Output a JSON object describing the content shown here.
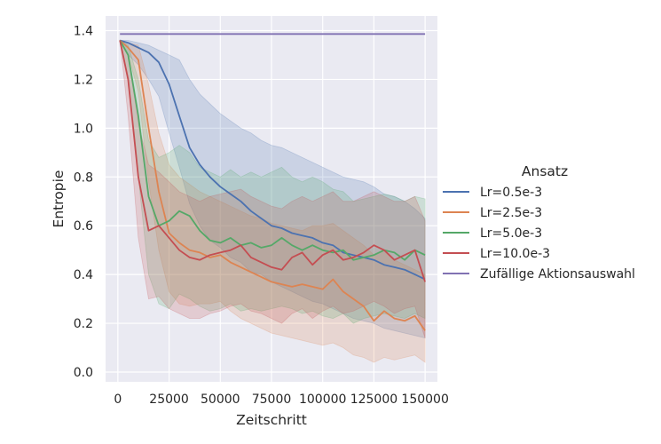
{
  "chart_data": {
    "type": "line",
    "title": "",
    "xlabel": "Zeitschritt",
    "ylabel": "Entropie",
    "xlim": [
      -6000,
      156000
    ],
    "ylim": [
      -0.04,
      1.46
    ],
    "xticks": [
      0,
      25000,
      50000,
      75000,
      100000,
      125000,
      150000
    ],
    "xtick_labels": [
      "0",
      "25000",
      "50000",
      "75000",
      "100000",
      "125000",
      "150000"
    ],
    "yticks": [
      0.0,
      0.2,
      0.4,
      0.6,
      0.8,
      1.0,
      1.2,
      1.4
    ],
    "ytick_labels": [
      "0.0",
      "0.2",
      "0.4",
      "0.6",
      "0.8",
      "1.0",
      "1.2",
      "1.4"
    ],
    "grid": true,
    "legend_title": "Ansatz",
    "legend_position": "outside-right",
    "series": [
      {
        "name": "Lr=0.5e-3",
        "color": "#4c72b0",
        "x": [
          1000,
          5000,
          10000,
          15000,
          20000,
          25000,
          30000,
          35000,
          40000,
          45000,
          50000,
          55000,
          60000,
          65000,
          70000,
          75000,
          80000,
          85000,
          90000,
          95000,
          100000,
          105000,
          110000,
          115000,
          120000,
          125000,
          130000,
          135000,
          140000,
          145000,
          150000
        ],
        "y": [
          1.36,
          1.35,
          1.33,
          1.31,
          1.27,
          1.18,
          1.05,
          0.92,
          0.85,
          0.8,
          0.76,
          0.73,
          0.7,
          0.66,
          0.63,
          0.6,
          0.59,
          0.57,
          0.56,
          0.55,
          0.53,
          0.52,
          0.49,
          0.48,
          0.47,
          0.46,
          0.44,
          0.43,
          0.42,
          0.4,
          0.38
        ],
        "upper": [
          1.36,
          1.36,
          1.35,
          1.34,
          1.32,
          1.3,
          1.28,
          1.2,
          1.14,
          1.1,
          1.06,
          1.03,
          1.0,
          0.98,
          0.95,
          0.93,
          0.92,
          0.9,
          0.88,
          0.86,
          0.84,
          0.82,
          0.8,
          0.79,
          0.78,
          0.76,
          0.73,
          0.72,
          0.7,
          0.67,
          0.63
        ],
        "lower": [
          1.36,
          1.3,
          1.26,
          1.2,
          1.13,
          0.98,
          0.84,
          0.69,
          0.6,
          0.54,
          0.51,
          0.47,
          0.45,
          0.41,
          0.4,
          0.37,
          0.35,
          0.33,
          0.31,
          0.29,
          0.28,
          0.26,
          0.24,
          0.22,
          0.21,
          0.2,
          0.18,
          0.17,
          0.16,
          0.15,
          0.14
        ]
      },
      {
        "name": "Lr=2.5e-3",
        "color": "#dd8452",
        "x": [
          1000,
          5000,
          10000,
          15000,
          20000,
          25000,
          30000,
          35000,
          40000,
          45000,
          50000,
          55000,
          60000,
          65000,
          70000,
          75000,
          80000,
          85000,
          90000,
          95000,
          100000,
          105000,
          110000,
          115000,
          120000,
          125000,
          130000,
          135000,
          140000,
          145000,
          150000
        ],
        "y": [
          1.36,
          1.33,
          1.28,
          1.0,
          0.74,
          0.57,
          0.53,
          0.5,
          0.49,
          0.47,
          0.48,
          0.45,
          0.43,
          0.41,
          0.39,
          0.37,
          0.36,
          0.35,
          0.36,
          0.35,
          0.34,
          0.38,
          0.33,
          0.3,
          0.27,
          0.21,
          0.25,
          0.22,
          0.21,
          0.23,
          0.17
        ],
        "upper": [
          1.36,
          1.35,
          1.34,
          1.18,
          0.98,
          0.85,
          0.8,
          0.77,
          0.74,
          0.72,
          0.7,
          0.68,
          0.66,
          0.64,
          0.63,
          0.61,
          0.6,
          0.59,
          0.58,
          0.6,
          0.6,
          0.61,
          0.58,
          0.55,
          0.52,
          0.48,
          0.5,
          0.46,
          0.44,
          0.42,
          0.4
        ],
        "lower": [
          1.36,
          1.3,
          1.15,
          0.78,
          0.5,
          0.33,
          0.28,
          0.27,
          0.28,
          0.28,
          0.29,
          0.25,
          0.22,
          0.2,
          0.18,
          0.16,
          0.15,
          0.14,
          0.13,
          0.12,
          0.11,
          0.12,
          0.1,
          0.07,
          0.06,
          0.04,
          0.06,
          0.05,
          0.06,
          0.07,
          0.04
        ]
      },
      {
        "name": "Lr=5.0e-3",
        "color": "#55a868",
        "x": [
          1000,
          5000,
          10000,
          15000,
          20000,
          25000,
          30000,
          35000,
          40000,
          45000,
          50000,
          55000,
          60000,
          65000,
          70000,
          75000,
          80000,
          85000,
          90000,
          95000,
          100000,
          105000,
          110000,
          115000,
          120000,
          125000,
          130000,
          135000,
          140000,
          145000,
          150000
        ],
        "y": [
          1.36,
          1.3,
          1.05,
          0.72,
          0.6,
          0.62,
          0.66,
          0.64,
          0.58,
          0.54,
          0.53,
          0.55,
          0.52,
          0.53,
          0.51,
          0.52,
          0.55,
          0.52,
          0.5,
          0.52,
          0.5,
          0.49,
          0.5,
          0.46,
          0.47,
          0.48,
          0.5,
          0.49,
          0.46,
          0.5,
          0.48
        ],
        "upper": [
          1.36,
          1.34,
          1.2,
          0.95,
          0.88,
          0.9,
          0.93,
          0.9,
          0.84,
          0.82,
          0.8,
          0.83,
          0.8,
          0.82,
          0.8,
          0.82,
          0.84,
          0.8,
          0.78,
          0.8,
          0.78,
          0.75,
          0.74,
          0.7,
          0.71,
          0.72,
          0.73,
          0.72,
          0.7,
          0.72,
          0.71
        ],
        "lower": [
          1.36,
          1.2,
          0.8,
          0.4,
          0.28,
          0.26,
          0.32,
          0.3,
          0.27,
          0.25,
          0.26,
          0.28,
          0.25,
          0.26,
          0.25,
          0.26,
          0.27,
          0.26,
          0.24,
          0.25,
          0.23,
          0.22,
          0.24,
          0.2,
          0.22,
          0.23,
          0.24,
          0.23,
          0.22,
          0.24,
          0.22
        ]
      },
      {
        "name": "Lr=10.0e-3",
        "color": "#c44e52",
        "x": [
          1000,
          5000,
          10000,
          15000,
          20000,
          25000,
          30000,
          35000,
          40000,
          45000,
          50000,
          55000,
          60000,
          65000,
          70000,
          75000,
          80000,
          85000,
          90000,
          95000,
          100000,
          105000,
          110000,
          115000,
          120000,
          125000,
          130000,
          135000,
          140000,
          145000,
          150000
        ],
        "y": [
          1.36,
          1.2,
          0.8,
          0.58,
          0.6,
          0.55,
          0.5,
          0.47,
          0.46,
          0.48,
          0.49,
          0.5,
          0.52,
          0.47,
          0.45,
          0.43,
          0.42,
          0.47,
          0.49,
          0.44,
          0.48,
          0.5,
          0.46,
          0.47,
          0.49,
          0.52,
          0.5,
          0.46,
          0.48,
          0.5,
          0.37
        ],
        "upper": [
          1.36,
          1.3,
          1.02,
          0.85,
          0.82,
          0.78,
          0.74,
          0.72,
          0.7,
          0.72,
          0.73,
          0.74,
          0.75,
          0.72,
          0.7,
          0.68,
          0.67,
          0.7,
          0.72,
          0.7,
          0.72,
          0.74,
          0.7,
          0.7,
          0.72,
          0.74,
          0.72,
          0.7,
          0.7,
          0.72,
          0.62
        ],
        "lower": [
          1.36,
          1.05,
          0.55,
          0.3,
          0.31,
          0.26,
          0.24,
          0.22,
          0.22,
          0.24,
          0.25,
          0.27,
          0.28,
          0.25,
          0.24,
          0.22,
          0.2,
          0.24,
          0.26,
          0.22,
          0.25,
          0.27,
          0.24,
          0.25,
          0.27,
          0.29,
          0.27,
          0.24,
          0.26,
          0.27,
          0.14
        ]
      },
      {
        "name": "Zufällige Aktionsauswahl",
        "color": "#8172b3",
        "x": [
          1000,
          150000
        ],
        "y": [
          1.386,
          1.386
        ]
      }
    ]
  }
}
